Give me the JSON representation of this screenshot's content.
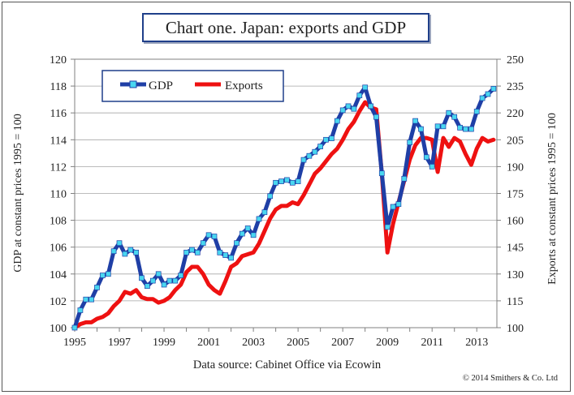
{
  "title": "Chart one. Japan: exports and GDP",
  "source_note": "Data source:  Cabinet Office via Ecowin",
  "copyright": "© 2014 Smithers & Co. Ltd",
  "colors": {
    "gdp_line": "#1f3fa6",
    "gdp_marker": "#49d6f0",
    "exports_line": "#ee1111",
    "plot_border": "#808080",
    "grid": "#a6a6a6"
  },
  "chart_data": {
    "type": "line",
    "title": "Chart one. Japan: exports and GDP",
    "xlabel": "",
    "ylabel": "GDP at constant prices 1995 = 100",
    "y2label": "Exports at constant prices 1995 = 100",
    "xlim": [
      1995.0,
      2013.9
    ],
    "ylim": [
      100,
      120
    ],
    "y2lim": [
      100,
      250
    ],
    "x_ticks": [
      "1995",
      "1997",
      "1999",
      "2001",
      "2003",
      "2005",
      "2007",
      "2009",
      "2011",
      "2013"
    ],
    "y_ticks": [
      "100",
      "102",
      "104",
      "106",
      "108",
      "110",
      "112",
      "114",
      "116",
      "118",
      "120"
    ],
    "y2_ticks": [
      "100",
      "115",
      "130",
      "145",
      "160",
      "175",
      "190",
      "205",
      "220",
      "235",
      "250"
    ],
    "legend": {
      "placement": "top-left",
      "entries": [
        "GDP",
        "Exports"
      ]
    },
    "grid": true,
    "series": [
      {
        "name": "GDP",
        "axis": "left",
        "x": [
          1995.0,
          1995.25,
          1995.5,
          1995.75,
          1996.0,
          1996.25,
          1996.5,
          1996.75,
          1997.0,
          1997.25,
          1997.5,
          1997.75,
          1998.0,
          1998.25,
          1998.5,
          1998.75,
          1999.0,
          1999.25,
          1999.5,
          1999.75,
          2000.0,
          2000.25,
          2000.5,
          2000.75,
          2001.0,
          2001.25,
          2001.5,
          2001.75,
          2002.0,
          2002.25,
          2002.5,
          2002.75,
          2003.0,
          2003.25,
          2003.5,
          2003.75,
          2004.0,
          2004.25,
          2004.5,
          2004.75,
          2005.0,
          2005.25,
          2005.5,
          2005.75,
          2006.0,
          2006.25,
          2006.5,
          2006.75,
          2007.0,
          2007.25,
          2007.5,
          2007.75,
          2008.0,
          2008.25,
          2008.5,
          2008.75,
          2009.0,
          2009.25,
          2009.5,
          2009.75,
          2010.0,
          2010.25,
          2010.5,
          2010.75,
          2011.0,
          2011.25,
          2011.5,
          2011.75,
          2012.0,
          2012.25,
          2012.5,
          2012.75,
          2013.0,
          2013.25,
          2013.5,
          2013.75
        ],
        "values": [
          100.0,
          101.3,
          102.1,
          102.1,
          103.0,
          103.9,
          104.0,
          105.7,
          106.3,
          105.5,
          105.8,
          105.6,
          103.7,
          103.1,
          103.5,
          104.0,
          103.2,
          103.5,
          103.5,
          103.9,
          105.6,
          105.8,
          105.6,
          106.3,
          106.9,
          106.8,
          105.6,
          105.4,
          105.2,
          106.3,
          107.0,
          107.4,
          106.9,
          108.1,
          108.6,
          109.8,
          110.8,
          110.9,
          111.0,
          110.8,
          110.9,
          112.5,
          112.8,
          113.1,
          113.5,
          114.0,
          114.1,
          115.4,
          116.2,
          116.5,
          116.3,
          117.3,
          117.9,
          116.5,
          115.7,
          111.5,
          107.5,
          109.0,
          109.2,
          111.1,
          113.8,
          115.4,
          114.8,
          112.7,
          112.0,
          115.0,
          115.0,
          116.0,
          115.7,
          114.9,
          114.8,
          114.8,
          116.1,
          117.1,
          117.4,
          117.8
        ]
      },
      {
        "name": "Exports",
        "axis": "right",
        "x": [
          1995.0,
          1995.25,
          1995.5,
          1995.75,
          1996.0,
          1996.25,
          1996.5,
          1996.75,
          1997.0,
          1997.25,
          1997.5,
          1997.75,
          1998.0,
          1998.25,
          1998.5,
          1998.75,
          1999.0,
          1999.25,
          1999.5,
          1999.75,
          2000.0,
          2000.25,
          2000.5,
          2000.75,
          2001.0,
          2001.25,
          2001.5,
          2001.75,
          2002.0,
          2002.25,
          2002.5,
          2002.75,
          2003.0,
          2003.25,
          2003.5,
          2003.75,
          2004.0,
          2004.25,
          2004.5,
          2004.75,
          2005.0,
          2005.25,
          2005.5,
          2005.75,
          2006.0,
          2006.25,
          2006.5,
          2006.75,
          2007.0,
          2007.25,
          2007.5,
          2007.75,
          2008.0,
          2008.25,
          2008.5,
          2008.75,
          2009.0,
          2009.25,
          2009.5,
          2009.75,
          2010.0,
          2010.25,
          2010.5,
          2010.75,
          2011.0,
          2011.25,
          2011.5,
          2011.75,
          2012.0,
          2012.25,
          2012.5,
          2012.75,
          2013.0,
          2013.25,
          2013.5,
          2013.75
        ],
        "values": [
          100,
          102,
          103,
          103,
          105,
          106,
          108,
          112,
          115,
          120,
          119,
          121,
          117,
          116,
          116,
          114,
          115,
          117,
          121,
          124,
          131,
          134,
          134,
          130,
          124,
          121,
          119,
          126,
          134,
          136,
          140,
          141,
          142,
          147,
          154,
          161,
          166,
          168,
          168,
          170,
          169,
          174,
          180,
          186,
          189,
          193,
          197,
          200,
          205,
          211,
          215,
          221,
          226,
          223,
          222,
          186,
          142,
          158,
          170,
          182,
          194,
          202,
          206,
          206,
          205,
          187,
          206,
          201,
          206,
          204,
          197,
          191,
          200,
          206,
          204,
          205
        ]
      }
    ]
  }
}
